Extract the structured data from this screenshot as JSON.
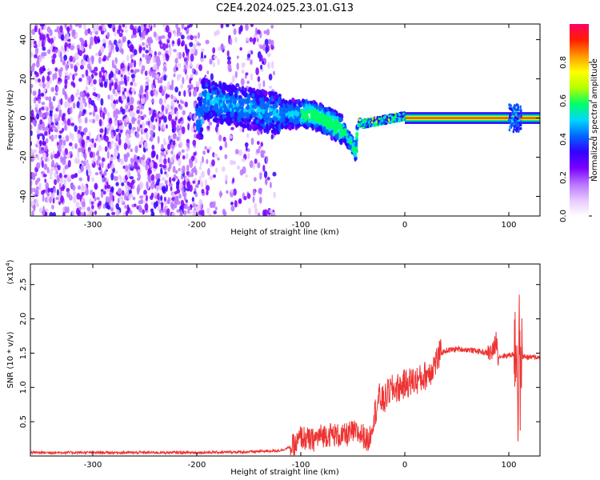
{
  "figure": {
    "title": "C2E4.2024.025.23.01.G13"
  },
  "chart_data": [
    {
      "type": "heatmap",
      "title": "C2E4.2024.025.23.01.G13",
      "xlabel": "Height of straight line (km)",
      "ylabel": "Frequency (Hz)",
      "xlim": [
        -360,
        130
      ],
      "ylim": [
        -50,
        48
      ],
      "x_ticks": [
        -300,
        -200,
        -100,
        0,
        100
      ],
      "y_ticks": [
        -40,
        -20,
        0,
        20,
        40
      ],
      "grid": false,
      "colorbar": {
        "label": "Normalized spectral amplitude",
        "range": [
          0.0,
          1.0
        ],
        "ticks": [
          "0.0",
          "0.2",
          "0.4",
          "0.6",
          "0.8"
        ],
        "colors": [
          "#ffffff",
          "#e6c8ff",
          "#b873ff",
          "#7a00ff",
          "#3300ff",
          "#0066ff",
          "#00d7ff",
          "#00ff66",
          "#b4ff00",
          "#ffff00",
          "#ff9900",
          "#ff1e00",
          "#ff0066"
        ]
      },
      "ridge": {
        "description_points_x": [
          -195,
          -180,
          -160,
          -140,
          -120,
          -100,
          -90,
          -80,
          -70,
          -60,
          -55,
          -50,
          -47,
          -45,
          -40,
          -30,
          -20,
          -10,
          0,
          20,
          60,
          80,
          100,
          107,
          110,
          130
        ],
        "description_points_y": [
          10,
          8,
          6,
          4,
          2,
          2,
          2,
          0,
          -3,
          -6,
          -10,
          -14,
          -18,
          -2,
          -3,
          -2,
          -1,
          0,
          1,
          0,
          0,
          0,
          0,
          2,
          0,
          0
        ]
      },
      "bands": [
        {
          "x0": -360,
          "x1": -200,
          "intensity": "noise-dense"
        },
        {
          "x0": -200,
          "x1": -125,
          "intensity": "noise-sparse"
        },
        {
          "x0": -45,
          "x1": 130,
          "intensity": "strong-line"
        }
      ]
    },
    {
      "type": "line",
      "xlabel": "Height of straight line (km)",
      "ylabel": "SNR (10 * v/v)",
      "y_exponent_label": "(x10",
      "y_exponent_sup": "4",
      "y_exponent_close": ")",
      "xlim": [
        -360,
        130
      ],
      "ylim": [
        0,
        2.8
      ],
      "x_ticks": [
        -300,
        -200,
        -100,
        0,
        100
      ],
      "y_ticks": [
        0.5,
        1.0,
        1.5,
        2.0,
        2.5
      ],
      "y_tick_labels": [
        "0.5",
        "1.0",
        "1.5",
        "2.0",
        "2.5"
      ],
      "grid": false,
      "series": [
        {
          "color": "#ee3333",
          "x": [
            -360,
            -300,
            -250,
            -200,
            -150,
            -120,
            -105,
            -100,
            -90,
            -80,
            -70,
            -60,
            -50,
            -40,
            -35,
            -30,
            -25,
            -20,
            -15,
            -10,
            -5,
            0,
            5,
            10,
            15,
            20,
            25,
            30,
            35,
            40,
            50,
            60,
            70,
            80,
            85,
            88,
            90,
            95,
            100,
            105,
            108,
            109,
            110,
            111,
            112,
            115,
            120,
            130
          ],
          "y": [
            0.05,
            0.05,
            0.05,
            0.05,
            0.06,
            0.08,
            0.15,
            0.28,
            0.22,
            0.3,
            0.32,
            0.28,
            0.35,
            0.3,
            0.2,
            0.55,
            0.85,
            0.8,
            0.95,
            0.98,
            1.0,
            1.05,
            1.08,
            1.1,
            1.12,
            1.18,
            1.25,
            1.38,
            1.5,
            1.54,
            1.56,
            1.55,
            1.53,
            1.5,
            1.52,
            1.7,
            1.45,
            1.46,
            1.47,
            1.49,
            1.55,
            0.4,
            2.2,
            0.9,
            1.45,
            1.45,
            1.44,
            1.44
          ]
        }
      ]
    }
  ]
}
